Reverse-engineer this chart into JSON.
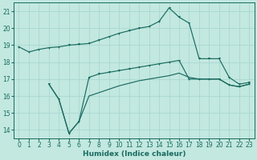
{
  "background_color": "#c2e8e0",
  "grid_color": "#a5d5cd",
  "line_color": "#1a6b60",
  "xlabel": "Humidex (Indice chaleur)",
  "xlim": [
    -0.5,
    23.5
  ],
  "ylim": [
    13.5,
    21.5
  ],
  "yticks": [
    14,
    15,
    16,
    17,
    18,
    19,
    20,
    21
  ],
  "xticks": [
    0,
    1,
    2,
    3,
    4,
    5,
    6,
    7,
    8,
    9,
    10,
    11,
    12,
    13,
    14,
    15,
    16,
    17,
    18,
    19,
    20,
    21,
    22,
    23
  ],
  "curve_top": {
    "x": [
      0,
      1,
      2,
      3,
      4,
      5,
      6,
      7,
      8,
      9,
      10,
      11,
      12,
      13,
      14,
      15,
      16,
      17,
      18,
      19,
      20,
      21,
      22,
      23
    ],
    "y": [
      18.9,
      18.6,
      18.75,
      18.85,
      18.9,
      19.0,
      19.05,
      19.1,
      19.3,
      19.5,
      19.7,
      19.85,
      20.0,
      20.1,
      20.4,
      21.2,
      20.65,
      20.3,
      18.2,
      18.2,
      18.2,
      17.1,
      16.7,
      16.8
    ]
  },
  "curve_dip": {
    "x": [
      3,
      4,
      5,
      6,
      7,
      8,
      9,
      10,
      11,
      12,
      13,
      14,
      15,
      16,
      17,
      18,
      19,
      20,
      21,
      22,
      23
    ],
    "y": [
      16.7,
      15.8,
      13.8,
      14.5,
      17.1,
      17.3,
      17.4,
      17.5,
      17.6,
      17.7,
      17.8,
      17.9,
      18.0,
      18.1,
      17.0,
      17.0,
      17.0,
      17.0,
      16.65,
      16.55,
      16.7
    ]
  },
  "curve_flat": {
    "x": [
      3,
      4,
      5,
      6,
      7,
      8,
      9,
      10,
      11,
      12,
      13,
      14,
      15,
      16,
      17,
      18,
      19,
      20,
      21,
      22,
      23
    ],
    "y": [
      16.7,
      15.8,
      13.8,
      14.5,
      16.0,
      16.2,
      16.4,
      16.6,
      16.75,
      16.9,
      17.0,
      17.1,
      17.2,
      17.35,
      17.1,
      17.0,
      17.0,
      17.0,
      16.65,
      16.55,
      16.7
    ]
  }
}
